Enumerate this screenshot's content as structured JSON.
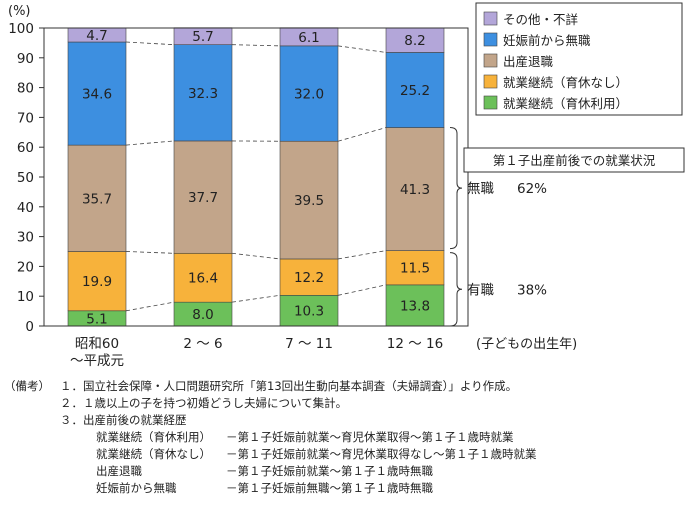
{
  "chart_data": {
    "type": "bar",
    "stacked": true,
    "unit": "(%)",
    "ylim": [
      0,
      100
    ],
    "yticks": [
      0,
      10,
      20,
      30,
      40,
      50,
      60,
      70,
      80,
      90,
      100
    ],
    "categories": [
      "昭和60\n～平成元",
      "2 ～ 6",
      "7 ～ 11",
      "12 ～ 16"
    ],
    "x_axis_note": "(子どもの出生年)",
    "series": [
      {
        "name": "就業継続（育休利用）",
        "color": "#6cc05a",
        "values": [
          5.1,
          8.0,
          10.3,
          13.8
        ]
      },
      {
        "name": "就業継続（育休なし）",
        "color": "#f7b23b",
        "values": [
          19.9,
          16.4,
          12.2,
          11.5
        ]
      },
      {
        "name": "出産退職",
        "color": "#c2a58a",
        "values": [
          35.7,
          37.7,
          39.5,
          41.3
        ]
      },
      {
        "name": "妊娠前から無職",
        "color": "#3d8fe0",
        "values": [
          34.6,
          32.3,
          32.0,
          25.2
        ]
      },
      {
        "name": "その他・不詳",
        "color": "#b3a6d9",
        "values": [
          4.7,
          5.7,
          6.1,
          8.2
        ]
      }
    ],
    "legend_order": [
      "その他・不詳",
      "妊娠前から無職",
      "出産退職",
      "就業継続（育休なし）",
      "就業継続（育休利用）"
    ],
    "legend_position": "top-right",
    "annotation_box": "第１子出産前後での就業状況",
    "annotations": [
      {
        "label": "無職",
        "value": "62%"
      },
      {
        "label": "有職",
        "value": "38%"
      }
    ]
  },
  "notes": {
    "heading": "（備考）",
    "items": [
      "１．国立社会保障・人口問題研究所「第13回出生動向基本調査（夫婦調査）」より作成。",
      "２．１歳以上の子を持つ初婚どうし夫婦について集計。",
      "３．出産前後の就業経歴"
    ],
    "definitions": [
      {
        "term": "就業継続（育休利用）",
        "desc": "－第１子妊娠前就業～育児休業取得～第１子１歳時就業"
      },
      {
        "term": "就業継続（育休なし）",
        "desc": "－第１子妊娠前就業～育児休業取得なし～第１子１歳時就業"
      },
      {
        "term": "出産退職",
        "desc": "－第１子妊娠前就業～第１子１歳時無職"
      },
      {
        "term": "妊娠前から無職",
        "desc": "－第１子妊娠前無職～第１子１歳時無職"
      }
    ]
  }
}
